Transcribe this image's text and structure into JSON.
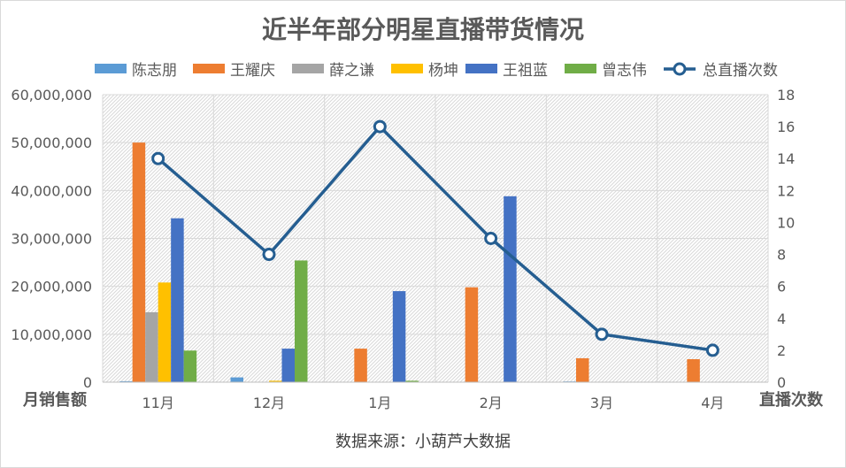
{
  "chart_data": {
    "type": "bar",
    "title": "近半年部分明星直播带货情况",
    "categories": [
      "11月",
      "12月",
      "1月",
      "2月",
      "3月",
      "4月"
    ],
    "series": [
      {
        "name": "陈志朋",
        "color": "#5b9bd5",
        "values": [
          200000,
          1000000,
          0,
          0,
          150000,
          0
        ]
      },
      {
        "name": "王耀庆",
        "color": "#ed7d31",
        "values": [
          50000000,
          0,
          7000000,
          19800000,
          5000000,
          4800000
        ]
      },
      {
        "name": "薛之谦",
        "color": "#a5a5a5",
        "values": [
          14600000,
          0,
          0,
          0,
          0,
          0
        ]
      },
      {
        "name": "杨坤",
        "color": "#ffc000",
        "values": [
          20800000,
          300000,
          0,
          0,
          0,
          0
        ]
      },
      {
        "name": "王祖蓝",
        "color": "#4472c4",
        "values": [
          34200000,
          7000000,
          19000000,
          38800000,
          0,
          0
        ]
      },
      {
        "name": "曾志伟",
        "color": "#70ad47",
        "values": [
          6600000,
          25400000,
          300000,
          0,
          0,
          0
        ]
      }
    ],
    "line_series": {
      "name": "总直播次数",
      "color": "#255e91",
      "values": [
        14,
        8,
        16,
        9,
        3,
        2
      ]
    },
    "y_left": {
      "label": "月销售额",
      "min": 0,
      "max": 60000000,
      "ticks": [
        "0",
        "10,000,000",
        "20,000,000",
        "30,000,000",
        "40,000,000",
        "50,000,000",
        "60,000,000"
      ]
    },
    "y_right": {
      "label": "直播次数",
      "min": 0,
      "max": 18,
      "ticks": [
        "0",
        "2",
        "4",
        "6",
        "8",
        "10",
        "12",
        "14",
        "16",
        "18"
      ]
    },
    "legend_position": "top",
    "grid": true,
    "source": "数据来源：小葫芦大数据"
  }
}
